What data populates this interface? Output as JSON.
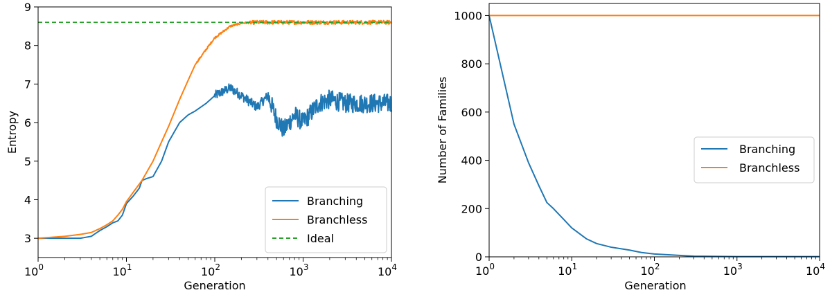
{
  "chart_data": [
    {
      "type": "line",
      "title": "",
      "xlabel": "Generation",
      "ylabel": "Entropy",
      "xscale": "log",
      "xlim": [
        1,
        10000
      ],
      "ylim": [
        2.5,
        9
      ],
      "x_tick_labels": [
        {
          "base": "10",
          "exp": "0",
          "value": 1
        },
        {
          "base": "10",
          "exp": "1",
          "value": 10
        },
        {
          "base": "10",
          "exp": "2",
          "value": 100
        },
        {
          "base": "10",
          "exp": "3",
          "value": 1000
        },
        {
          "base": "10",
          "exp": "4",
          "value": 10000
        }
      ],
      "y_ticks": [
        3,
        4,
        5,
        6,
        7,
        8,
        9
      ],
      "grid": false,
      "legend": "bottom-right",
      "series": [
        {
          "name": "Branching",
          "color": "#1f77b4",
          "style": "solid",
          "noise": 0.25,
          "noise_from": 400,
          "x": [
            1,
            2,
            3,
            4,
            5,
            6,
            7,
            8,
            9,
            10,
            12,
            14,
            15,
            17,
            20,
            25,
            30,
            40,
            50,
            60,
            80,
            100,
            150,
            200,
            300,
            400,
            500,
            600,
            800,
            1000,
            1500,
            2000,
            3000,
            5000,
            10000
          ],
          "y": [
            3.0,
            3.0,
            3.0,
            3.05,
            3.2,
            3.3,
            3.4,
            3.45,
            3.6,
            3.9,
            4.1,
            4.3,
            4.5,
            4.55,
            4.6,
            5.0,
            5.5,
            6.0,
            6.2,
            6.3,
            6.5,
            6.7,
            6.9,
            6.7,
            6.4,
            6.7,
            6.1,
            5.8,
            6.2,
            6.0,
            6.5,
            6.6,
            6.5,
            6.5,
            6.5
          ]
        },
        {
          "name": "Branchless",
          "color": "#ff7f0e",
          "style": "solid",
          "noise": 0.05,
          "noise_from": 250,
          "x": [
            1,
            2,
            3,
            4,
            5,
            6,
            7,
            8,
            9,
            10,
            12,
            15,
            20,
            25,
            30,
            40,
            50,
            60,
            80,
            100,
            150,
            200,
            300,
            500,
            1000,
            10000
          ],
          "y": [
            3.0,
            3.05,
            3.1,
            3.15,
            3.25,
            3.35,
            3.45,
            3.6,
            3.75,
            3.95,
            4.2,
            4.5,
            5.0,
            5.5,
            5.9,
            6.6,
            7.1,
            7.5,
            7.9,
            8.2,
            8.5,
            8.58,
            8.6,
            8.6,
            8.6,
            8.6
          ]
        },
        {
          "name": "Ideal",
          "color": "#2ca02c",
          "style": "dashed",
          "x": [
            1,
            10000
          ],
          "y": [
            8.6,
            8.6
          ]
        }
      ]
    },
    {
      "type": "line",
      "title": "",
      "xlabel": "Generation",
      "ylabel": "Number of Families",
      "xscale": "log",
      "xlim": [
        1,
        10000
      ],
      "ylim": [
        0,
        1050
      ],
      "x_tick_labels": [
        {
          "base": "10",
          "exp": "0",
          "value": 1
        },
        {
          "base": "10",
          "exp": "1",
          "value": 10
        },
        {
          "base": "10",
          "exp": "2",
          "value": 100
        },
        {
          "base": "10",
          "exp": "3",
          "value": 1000
        },
        {
          "base": "10",
          "exp": "4",
          "value": 10000
        }
      ],
      "y_ticks": [
        0,
        200,
        400,
        600,
        800,
        1000
      ],
      "grid": false,
      "legend": "center-right",
      "series": [
        {
          "name": "Branching",
          "color": "#1f77b4",
          "style": "solid",
          "x": [
            1,
            2,
            3,
            4,
            5,
            6,
            8,
            10,
            15,
            20,
            30,
            50,
            70,
            100,
            200,
            300,
            500,
            1000,
            3000,
            10000
          ],
          "y": [
            1000,
            550,
            390,
            295,
            225,
            200,
            155,
            120,
            75,
            55,
            40,
            28,
            18,
            12,
            6,
            3,
            2,
            1,
            1,
            1
          ]
        },
        {
          "name": "Branchless",
          "color": "#ff7f0e",
          "style": "solid",
          "x": [
            1,
            10000
          ],
          "y": [
            1000,
            1000
          ]
        }
      ]
    }
  ]
}
